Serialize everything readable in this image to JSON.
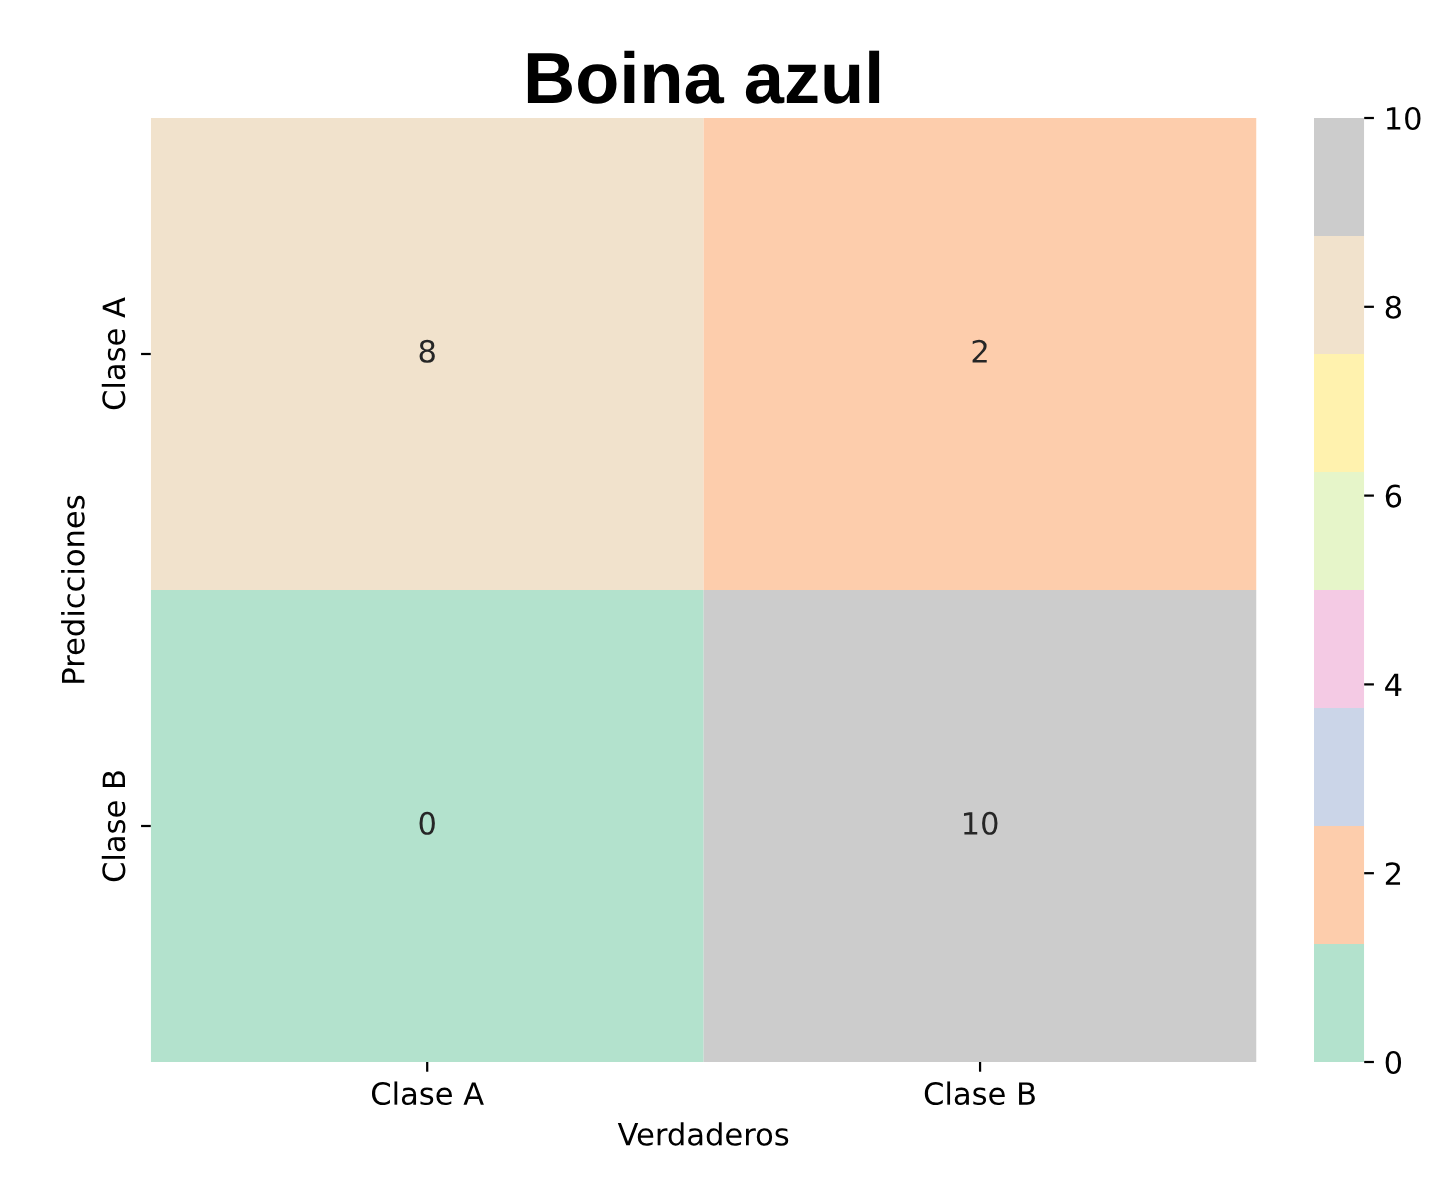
{
  "chart_data": {
    "type": "heatmap",
    "title": "Boina azul",
    "xlabel": "Verdaderos",
    "ylabel": "Predicciones",
    "categories": [
      "Clase A",
      "Clase B"
    ],
    "y_categories": [
      "Clase A",
      "Clase B"
    ],
    "cells": [
      [
        8,
        2
      ],
      [
        0,
        10
      ]
    ],
    "data_labels": true,
    "clim": [
      0,
      10
    ],
    "cticks": [
      0,
      2,
      4,
      6,
      8,
      10
    ]
  }
}
